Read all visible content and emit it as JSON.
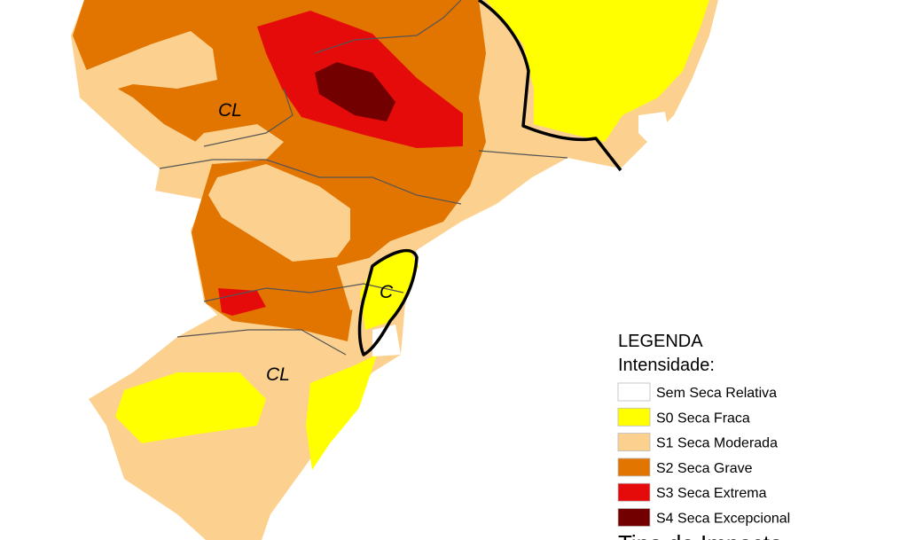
{
  "map": {
    "labels": [
      "CL",
      "CL",
      "C"
    ],
    "legend": {
      "title": "LEGENDA",
      "subtitle": "Intensidade:",
      "items": [
        {
          "label": "Sem Seca Relativa",
          "color": "#ffffff"
        },
        {
          "label": "S0 Seca Fraca",
          "color": "#ffff00"
        },
        {
          "label": "S1 Seca Moderada",
          "color": "#fcd18f"
        },
        {
          "label": "S2 Seca Grave",
          "color": "#e27400"
        },
        {
          "label": "S3 Seca Extrema",
          "color": "#e60b0b"
        },
        {
          "label": "S4 Seca Excepcional",
          "color": "#730000"
        }
      ],
      "next_section": "Tipo de Impacto"
    }
  }
}
